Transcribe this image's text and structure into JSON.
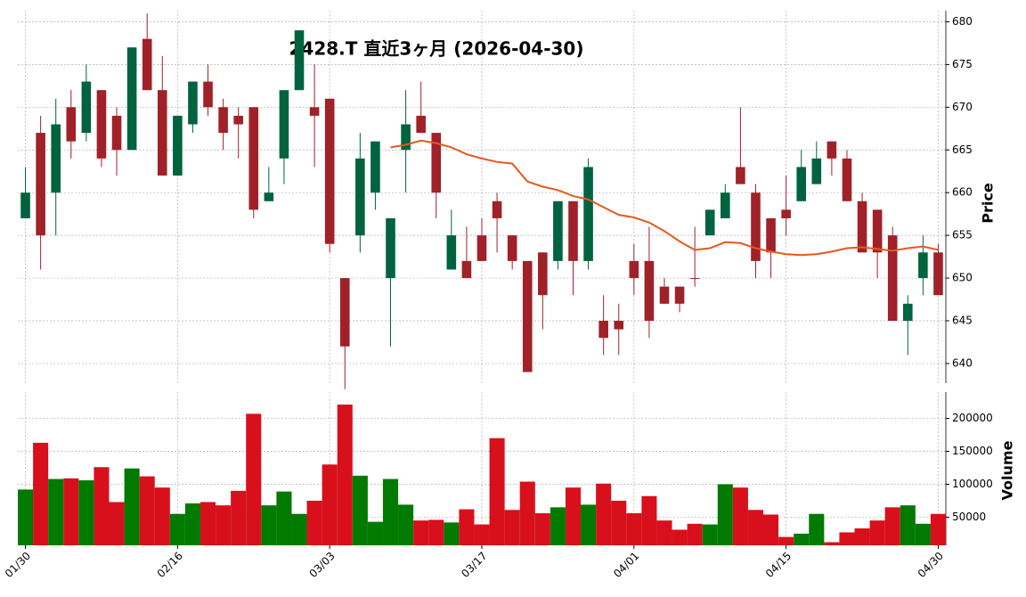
{
  "chart_data": {
    "type": "candlestick",
    "title": "2428.T  直近3ヶ月  (2026-04-30)",
    "ylabel": "Price",
    "categories": [
      "01/30",
      null,
      null,
      null,
      null,
      null,
      null,
      null,
      null,
      null,
      "02/16",
      null,
      null,
      null,
      null,
      null,
      null,
      null,
      null,
      null,
      "03/03",
      null,
      null,
      null,
      null,
      null,
      null,
      null,
      null,
      null,
      "03/17",
      null,
      null,
      null,
      null,
      null,
      null,
      null,
      null,
      null,
      "04/01",
      null,
      null,
      null,
      null,
      null,
      null,
      null,
      null,
      null,
      "04/15",
      null,
      null,
      null,
      null,
      null,
      null,
      null,
      null,
      null,
      "04/30"
    ],
    "open": [
      657,
      667,
      660,
      670,
      667,
      672,
      669,
      665,
      678,
      672,
      662,
      668,
      673,
      670,
      669,
      670,
      659,
      664,
      672,
      670,
      671,
      650,
      655,
      660,
      650,
      665,
      669,
      667,
      651,
      652,
      655,
      659,
      655,
      652,
      653,
      652,
      659,
      652,
      645,
      645,
      652,
      652,
      649,
      649,
      650,
      655,
      657,
      663,
      660,
      657,
      658,
      659,
      661,
      666,
      664,
      659,
      658,
      655,
      645,
      650,
      653
    ],
    "high": [
      663,
      669,
      671,
      672,
      675,
      672,
      670,
      677,
      681,
      676,
      669,
      673,
      675,
      671,
      670,
      670,
      663,
      672,
      679,
      675,
      671,
      650,
      667,
      666,
      657,
      672,
      673,
      667,
      658,
      656,
      657,
      660,
      655,
      652,
      653,
      659,
      659,
      664,
      648,
      647,
      654,
      656,
      650,
      649,
      656,
      658,
      661,
      670,
      661,
      657,
      662,
      665,
      666,
      666,
      665,
      660,
      658,
      656,
      648,
      655,
      654
    ],
    "low": [
      657,
      651,
      655,
      664,
      666,
      663,
      662,
      665,
      672,
      662,
      662,
      667,
      669,
      665,
      664,
      657,
      659,
      661,
      672,
      663,
      653,
      637,
      653,
      658,
      642,
      660,
      667,
      657,
      651,
      650,
      652,
      653,
      651,
      639,
      644,
      651,
      648,
      651,
      641,
      641,
      648,
      643,
      647,
      646,
      649,
      655,
      657,
      661,
      650,
      650,
      655,
      659,
      661,
      662,
      659,
      653,
      650,
      645,
      641,
      648,
      648
    ],
    "close": [
      660,
      655,
      668,
      666,
      673,
      664,
      665,
      677,
      672,
      662,
      669,
      673,
      670,
      667,
      668,
      658,
      660,
      672,
      679,
      669,
      654,
      642,
      664,
      666,
      657,
      668,
      667,
      660,
      655,
      650,
      652,
      657,
      652,
      639,
      648,
      659,
      652,
      663,
      643,
      644,
      650,
      645,
      647,
      647,
      650,
      658,
      660,
      661,
      652,
      653,
      657,
      663,
      664,
      664,
      659,
      653,
      653,
      645,
      647,
      653,
      648
    ],
    "up_color": "#006340",
    "down_color": "#a02128",
    "ma": {
      "color": "#e8571e",
      "values": [
        null,
        null,
        null,
        null,
        null,
        null,
        null,
        null,
        null,
        null,
        null,
        null,
        null,
        null,
        null,
        null,
        null,
        null,
        null,
        null,
        null,
        null,
        null,
        null,
        665.3,
        665.6,
        666.1,
        665.8,
        665.3,
        664.5,
        664.0,
        663.6,
        663.4,
        661.3,
        660.7,
        660.3,
        659.6,
        659.2,
        658.3,
        657.4,
        657.1,
        656.5,
        655.5,
        654.3,
        653.3,
        653.5,
        654.2,
        654.1,
        653.5,
        653.1,
        652.8,
        652.7,
        652.8,
        653.1,
        653.5,
        653.6,
        653.4,
        653.2,
        653.5,
        653.7,
        653.3
      ]
    },
    "ylim": [
      637.7,
      681.3
    ],
    "yticks": [
      640,
      645,
      650,
      655,
      660,
      665,
      670,
      675,
      680
    ],
    "grid": true,
    "volume": {
      "ylabel": "Volume",
      "values": [
        92000,
        163000,
        108000,
        109000,
        106000,
        126000,
        73000,
        124000,
        112000,
        95000,
        55000,
        71000,
        73000,
        68000,
        90000,
        207000,
        68000,
        89000,
        55000,
        75000,
        130000,
        221000,
        113000,
        43000,
        108000,
        69000,
        45000,
        46000,
        42000,
        62000,
        39000,
        170000,
        61000,
        104000,
        56000,
        65000,
        95000,
        69000,
        101000,
        75000,
        56000,
        82000,
        45000,
        31000,
        40000,
        39000,
        100000,
        95000,
        61000,
        54000,
        20000,
        25000,
        55000,
        12000,
        27000,
        33000,
        45000,
        65000,
        68000,
        40000,
        55000
      ],
      "up_color": "#007a00",
      "down_color": "#d8101c",
      "ylim": [
        7300,
        240000
      ],
      "yticks": [
        50000,
        100000,
        150000,
        200000
      ]
    }
  }
}
